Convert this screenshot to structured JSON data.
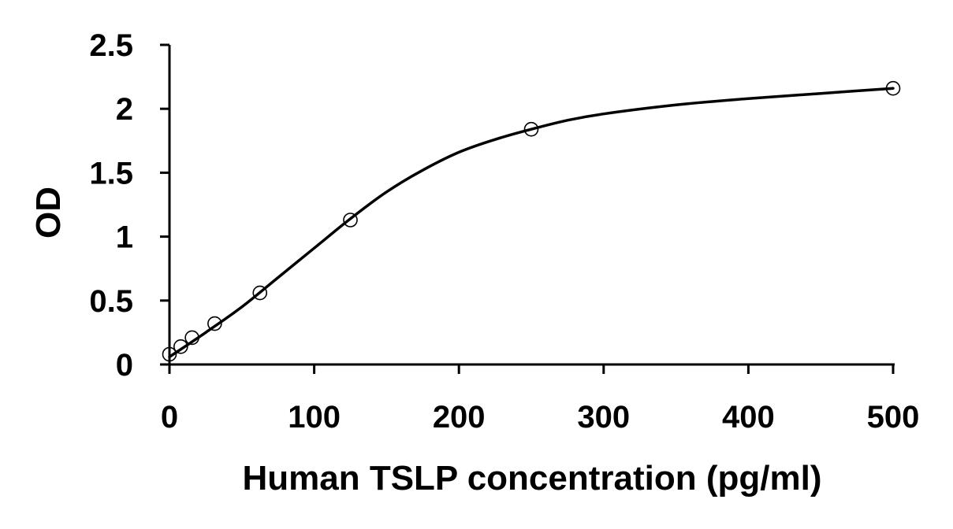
{
  "chart_data": {
    "type": "scatter",
    "title": "",
    "xlabel": "Human TSLP concentration (pg/ml)",
    "ylabel": "OD",
    "xlim": [
      0,
      500
    ],
    "ylim": [
      0,
      2.5
    ],
    "xticks": [
      0,
      100,
      200,
      300,
      400,
      500
    ],
    "yticks": [
      0,
      0.5,
      1,
      1.5,
      2,
      2.5
    ],
    "xtick_labels": [
      "0",
      "100",
      "200",
      "300",
      "400",
      "500"
    ],
    "ytick_labels": [
      "0",
      "0.5",
      "1",
      "1.5",
      "2",
      "2.5"
    ],
    "grid": false,
    "legend": "none",
    "series": [
      {
        "marker": "open-circle",
        "points": [
          {
            "x": 0,
            "y": 0.08
          },
          {
            "x": 7.8,
            "y": 0.14
          },
          {
            "x": 15.6,
            "y": 0.21
          },
          {
            "x": 31.25,
            "y": 0.32
          },
          {
            "x": 62.5,
            "y": 0.56
          },
          {
            "x": 125,
            "y": 1.13
          },
          {
            "x": 250,
            "y": 1.84
          },
          {
            "x": 500,
            "y": 2.16
          }
        ]
      }
    ],
    "fit_curve": {
      "style": "solid-black",
      "points": [
        {
          "x": 0,
          "y": 0.06
        },
        {
          "x": 25,
          "y": 0.25
        },
        {
          "x": 50,
          "y": 0.45
        },
        {
          "x": 75,
          "y": 0.68
        },
        {
          "x": 100,
          "y": 0.91
        },
        {
          "x": 125,
          "y": 1.14
        },
        {
          "x": 150,
          "y": 1.35
        },
        {
          "x": 175,
          "y": 1.52
        },
        {
          "x": 200,
          "y": 1.66
        },
        {
          "x": 225,
          "y": 1.76
        },
        {
          "x": 250,
          "y": 1.84
        },
        {
          "x": 275,
          "y": 1.91
        },
        {
          "x": 300,
          "y": 1.96
        },
        {
          "x": 350,
          "y": 2.03
        },
        {
          "x": 400,
          "y": 2.08
        },
        {
          "x": 450,
          "y": 2.12
        },
        {
          "x": 500,
          "y": 2.16
        }
      ]
    },
    "colors": {
      "axis": "#000000",
      "marker_stroke": "#000000",
      "curve": "#000000"
    }
  }
}
